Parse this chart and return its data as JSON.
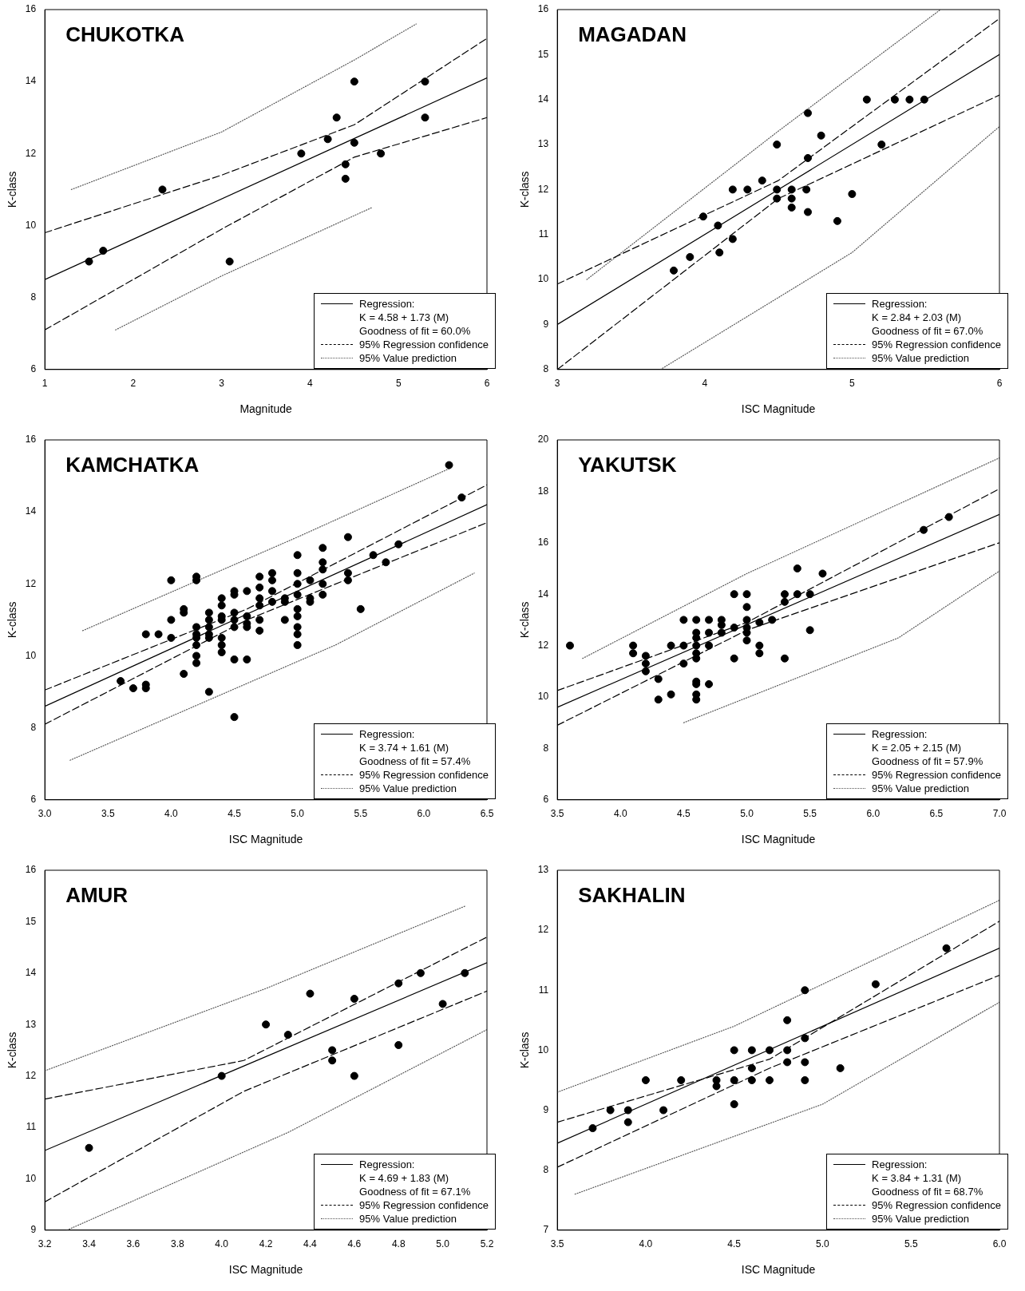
{
  "chart_data": [
    {
      "type": "scatter",
      "title": "CHUKOTKA",
      "xlabel": "Magnitude",
      "ylabel": "K-class",
      "marker": "circle",
      "legend": "bottom right",
      "xlim": [
        1,
        6
      ],
      "xticks": [
        1,
        2,
        3,
        4,
        5,
        6
      ],
      "ylim": [
        6,
        16
      ],
      "yticks": [
        6,
        8,
        10,
        12,
        14,
        16
      ],
      "annotations": [
        "K = 4.58 + 1.73 (M)",
        "Goodness of fit = 60.0%"
      ],
      "series": [
        {
          "type": "scatter",
          "color": "#000000",
          "x": [
            1.5,
            1.66,
            2.33,
            3.09,
            3.9,
            4.2,
            4.3,
            4.5,
            4.4,
            4.4,
            4.5,
            4.8,
            5.3,
            5.3
          ],
          "values": [
            9.0,
            9.3,
            11.0,
            9.0,
            12.0,
            12.4,
            13.0,
            14.0,
            11.7,
            11.3,
            12.3,
            12.0,
            14.0,
            13.0
          ]
        },
        {
          "name": "Regression:",
          "type": "line",
          "line_style": "solid",
          "marker": "none",
          "color": "#000000",
          "x": [
            1,
            6
          ],
          "values": [
            8.5,
            14.1
          ]
        },
        {
          "name": "95% Regression confidence",
          "type": "line",
          "line_style": "dashed",
          "marker": "none",
          "color": "#000000",
          "x": [
            1,
            3,
            4.5,
            6
          ],
          "values": [
            9.8,
            11.4,
            12.8,
            15.2
          ]
        },
        {
          "type": "line",
          "line_style": "dashed",
          "marker": "none",
          "color": "#000000",
          "x": [
            1,
            3,
            4.5,
            6
          ],
          "values": [
            7.1,
            9.9,
            11.9,
            13.0
          ]
        },
        {
          "name": "95% Value prediction",
          "type": "line",
          "line_style": "dotted",
          "marker": "none",
          "color": "#555555",
          "x": [
            1.3,
            3,
            4.5,
            5.2
          ],
          "values": [
            11.0,
            12.6,
            14.6,
            15.6
          ]
        },
        {
          "type": "line",
          "line_style": "dotted",
          "marker": "none",
          "color": "#555555",
          "x": [
            1.8,
            3,
            4.7
          ],
          "values": [
            7.1,
            8.6,
            10.5
          ]
        }
      ]
    },
    {
      "type": "scatter",
      "title": "MAGADAN",
      "xlabel": "ISC Magnitude",
      "ylabel": "K-class",
      "marker": "circle",
      "legend": "bottom right",
      "xlim": [
        3,
        6
      ],
      "xticks": [
        3,
        4,
        5,
        6
      ],
      "ylim": [
        8,
        16
      ],
      "yticks": [
        8,
        9,
        10,
        11,
        12,
        13,
        14,
        15,
        16
      ],
      "annotations": [
        "K = 2.84 + 2.03 (M)",
        "Goodness of fit = 67.0%"
      ],
      "series": [
        {
          "type": "scatter",
          "color": "#000000",
          "x": [
            3.79,
            3.9,
            3.99,
            4.09,
            4.1,
            4.19,
            4.19,
            4.29,
            4.39,
            4.49,
            4.49,
            4.49,
            4.59,
            4.59,
            4.59,
            4.69,
            4.7,
            4.7,
            4.7,
            4.79,
            4.9,
            5.0,
            5.1,
            5.2,
            5.29,
            5.39,
            5.49
          ],
          "values": [
            10.2,
            10.5,
            11.4,
            11.2,
            10.6,
            12.0,
            10.9,
            12.0,
            12.2,
            13.0,
            12.0,
            11.8,
            12.0,
            11.8,
            11.6,
            12.0,
            13.7,
            12.7,
            11.5,
            13.2,
            11.3,
            11.9,
            14.0,
            13.0,
            14.0,
            14.0,
            14.0
          ]
        },
        {
          "name": "Regression:",
          "type": "line",
          "line_style": "solid",
          "marker": "none",
          "color": "#000000",
          "x": [
            3,
            6
          ],
          "values": [
            9.0,
            15.0
          ]
        },
        {
          "name": "95% Regression confidence",
          "type": "line",
          "line_style": "dashed",
          "marker": "none",
          "color": "#000000",
          "x": [
            3,
            4.5,
            6
          ],
          "values": [
            9.9,
            12.2,
            15.8
          ]
        },
        {
          "type": "line",
          "line_style": "dashed",
          "marker": "none",
          "color": "#000000",
          "x": [
            3,
            4.5,
            6
          ],
          "values": [
            8.0,
            11.8,
            14.1
          ]
        },
        {
          "name": "95% Value prediction",
          "type": "line",
          "line_style": "dotted",
          "marker": "none",
          "color": "#555555",
          "x": [
            3.2,
            4.5,
            5.6
          ],
          "values": [
            10.0,
            13.3,
            16.0
          ]
        },
        {
          "type": "line",
          "line_style": "dotted",
          "marker": "none",
          "color": "#555555",
          "x": [
            3.7,
            5,
            6
          ],
          "values": [
            8.0,
            10.6,
            13.4
          ]
        }
      ]
    },
    {
      "type": "scatter",
      "title": "KAMCHATKA",
      "xlabel": "ISC Magnitude",
      "ylabel": "K-class",
      "marker": "circle",
      "legend": "bottom right",
      "xlim": [
        3,
        6.5
      ],
      "xticks": [
        {
          "value": 3,
          "label": "3.0"
        },
        {
          "value": 3.5,
          "label": "3.5"
        },
        {
          "value": 4,
          "label": "4.0"
        },
        {
          "value": 4.5,
          "label": "4.5"
        },
        {
          "value": 5,
          "label": "5.0"
        },
        {
          "value": 5.5,
          "label": "5.5"
        },
        {
          "value": 6,
          "label": "6.0"
        },
        {
          "value": 6.5,
          "label": "6.5"
        }
      ],
      "ylim": [
        6,
        16
      ],
      "yticks": [
        6,
        8,
        10,
        12,
        14,
        16
      ],
      "annotations": [
        "K = 3.74 + 1.61 (M)",
        "Goodness of fit = 57.4%"
      ],
      "series": [
        {
          "type": "scatter",
          "color": "#000000",
          "x": [
            3.6,
            3.7,
            3.8,
            3.8,
            3.8,
            3.9,
            4.0,
            4.0,
            4.0,
            4.1,
            4.1,
            4.1,
            4.2,
            4.2,
            4.2,
            4.2,
            4.2,
            4.2,
            4.2,
            4.2,
            4.3,
            4.3,
            4.3,
            4.3,
            4.3,
            4.3,
            4.4,
            4.4,
            4.4,
            4.4,
            4.4,
            4.4,
            4.4,
            4.5,
            4.5,
            4.5,
            4.5,
            4.5,
            4.5,
            4.5,
            4.6,
            4.6,
            4.6,
            4.6,
            4.6,
            4.7,
            4.7,
            4.7,
            4.7,
            4.7,
            4.7,
            4.8,
            4.8,
            4.8,
            4.8,
            4.9,
            4.9,
            4.9,
            5.0,
            5.0,
            5.0,
            5.0,
            5.0,
            5.0,
            5.0,
            5.0,
            5.0,
            5.1,
            5.1,
            5.1,
            5.2,
            5.2,
            5.2,
            5.2,
            5.2,
            5.4,
            5.4,
            5.4,
            5.5,
            5.6,
            5.7,
            5.8,
            6.2,
            6.3
          ],
          "values": [
            9.3,
            9.1,
            10.6,
            9.2,
            9.1,
            10.6,
            12.1,
            11.0,
            10.5,
            11.3,
            11.2,
            9.5,
            12.2,
            12.1,
            10.8,
            10.6,
            10.5,
            10.3,
            10.0,
            9.8,
            11.2,
            11.0,
            10.8,
            10.6,
            10.5,
            9.0,
            11.6,
            11.4,
            11.1,
            11.0,
            10.5,
            10.3,
            10.1,
            11.8,
            11.7,
            11.2,
            11.0,
            10.8,
            9.9,
            8.3,
            11.8,
            11.1,
            10.9,
            10.8,
            9.9,
            12.2,
            11.9,
            11.6,
            11.4,
            11.0,
            10.7,
            12.3,
            12.1,
            11.8,
            11.5,
            11.6,
            11.5,
            11.0,
            12.8,
            12.3,
            12.0,
            11.7,
            11.3,
            11.1,
            10.8,
            10.6,
            10.3,
            12.1,
            11.6,
            11.5,
            13.0,
            12.6,
            12.4,
            12.0,
            11.7,
            13.3,
            12.3,
            12.1,
            11.3,
            12.8,
            12.6,
            13.1,
            15.3,
            14.4
          ]
        },
        {
          "name": "Regression:",
          "type": "line",
          "line_style": "solid",
          "marker": "none",
          "color": "#000000",
          "x": [
            3,
            6.5
          ],
          "values": [
            8.6,
            14.2
          ]
        },
        {
          "name": "95% Regression confidence",
          "type": "line",
          "line_style": "dashed",
          "marker": "none",
          "color": "#000000",
          "x": [
            3,
            4.6,
            6.5
          ],
          "values": [
            9.05,
            11.3,
            14.75
          ]
        },
        {
          "type": "line",
          "line_style": "dashed",
          "marker": "none",
          "color": "#000000",
          "x": [
            3,
            4.6,
            6.5
          ],
          "values": [
            8.1,
            11.0,
            13.7
          ]
        },
        {
          "name": "95% Value prediction",
          "type": "line",
          "line_style": "dotted",
          "marker": "none",
          "color": "#555555",
          "x": [
            3.3,
            5,
            6.2
          ],
          "values": [
            10.7,
            13.3,
            15.2
          ]
        },
        {
          "type": "line",
          "line_style": "dotted",
          "marker": "none",
          "color": "#555555",
          "x": [
            3.2,
            5.3,
            6.4
          ],
          "values": [
            7.1,
            10.3,
            12.3
          ]
        }
      ]
    },
    {
      "type": "scatter",
      "title": "YAKUTSK",
      "xlabel": "ISC Magnitude",
      "ylabel": "K-class",
      "marker": "circle",
      "legend": "bottom right",
      "xlim": [
        3.5,
        7
      ],
      "xticks": [
        {
          "value": 3.5,
          "label": "3.5"
        },
        {
          "value": 4,
          "label": "4.0"
        },
        {
          "value": 4.5,
          "label": "4.5"
        },
        {
          "value": 5,
          "label": "5.0"
        },
        {
          "value": 5.5,
          "label": "5.5"
        },
        {
          "value": 6,
          "label": "6.0"
        },
        {
          "value": 6.5,
          "label": "6.5"
        },
        {
          "value": 7,
          "label": "7.0"
        }
      ],
      "ylim": [
        6,
        20
      ],
      "yticks": [
        6,
        8,
        10,
        12,
        14,
        16,
        18,
        20
      ],
      "annotations": [
        "K = 2.05 + 2.15 (M)",
        "Goodness of fit = 57.9%"
      ],
      "series": [
        {
          "type": "scatter",
          "color": "#000000",
          "x": [
            3.6,
            4.1,
            4.1,
            4.2,
            4.2,
            4.2,
            4.3,
            4.3,
            4.4,
            4.4,
            4.5,
            4.5,
            4.5,
            4.6,
            4.6,
            4.6,
            4.6,
            4.6,
            4.6,
            4.6,
            4.6,
            4.6,
            4.6,
            4.7,
            4.7,
            4.7,
            4.7,
            4.8,
            4.8,
            4.8,
            4.9,
            4.9,
            4.9,
            5.0,
            5.0,
            5.0,
            5.0,
            5.0,
            5.0,
            5.1,
            5.1,
            5.1,
            5.2,
            5.3,
            5.3,
            5.3,
            5.4,
            5.4,
            5.5,
            5.5,
            5.6,
            6.4,
            6.6
          ],
          "values": [
            12.0,
            12.0,
            11.7,
            11.6,
            11.3,
            11.0,
            10.7,
            9.9,
            12.0,
            10.1,
            13.0,
            12.0,
            11.3,
            13.0,
            12.5,
            12.3,
            12.0,
            11.7,
            11.5,
            10.6,
            10.5,
            10.1,
            9.9,
            13.0,
            12.5,
            12.0,
            10.5,
            13.0,
            12.8,
            12.5,
            14.0,
            12.7,
            11.5,
            14.0,
            13.5,
            13.0,
            12.7,
            12.5,
            12.2,
            12.9,
            12.0,
            11.7,
            13.0,
            14.0,
            13.7,
            11.5,
            15.0,
            14.0,
            14.0,
            12.6,
            14.8,
            16.5,
            17.0
          ]
        },
        {
          "name": "Regression:",
          "type": "line",
          "line_style": "solid",
          "marker": "none",
          "color": "#000000",
          "x": [
            3.5,
            7
          ],
          "values": [
            9.6,
            17.1
          ]
        },
        {
          "name": "95% Regression confidence",
          "type": "line",
          "line_style": "dashed",
          "marker": "none",
          "color": "#000000",
          "x": [
            3.5,
            5,
            7
          ],
          "values": [
            10.25,
            12.9,
            18.1
          ]
        },
        {
          "type": "line",
          "line_style": "dashed",
          "marker": "none",
          "color": "#000000",
          "x": [
            3.5,
            5,
            7
          ],
          "values": [
            8.9,
            12.6,
            16.0
          ]
        },
        {
          "name": "95% Value prediction",
          "type": "line",
          "line_style": "dotted",
          "marker": "none",
          "color": "#555555",
          "x": [
            3.7,
            5,
            7
          ],
          "values": [
            11.5,
            14.8,
            19.3
          ]
        },
        {
          "type": "line",
          "line_style": "dotted",
          "marker": "none",
          "color": "#555555",
          "x": [
            4.5,
            6.2,
            7
          ],
          "values": [
            9.0,
            12.3,
            14.9
          ]
        }
      ]
    },
    {
      "type": "scatter",
      "title": "AMUR",
      "xlabel": "ISC Magnitude",
      "ylabel": "K-class",
      "marker": "circle",
      "legend": "bottom right",
      "xlim": [
        3.2,
        5.2
      ],
      "xticks": [
        {
          "value": 3.2,
          "label": "3.2"
        },
        {
          "value": 3.4,
          "label": "3.4"
        },
        {
          "value": 3.6,
          "label": "3.6"
        },
        {
          "value": 3.8,
          "label": "3.8"
        },
        {
          "value": 4,
          "label": "4.0"
        },
        {
          "value": 4.2,
          "label": "4.2"
        },
        {
          "value": 4.4,
          "label": "4.4"
        },
        {
          "value": 4.6,
          "label": "4.6"
        },
        {
          "value": 4.8,
          "label": "4.8"
        },
        {
          "value": 5,
          "label": "5.0"
        },
        {
          "value": 5.2,
          "label": "5.2"
        }
      ],
      "ylim": [
        9,
        16
      ],
      "yticks": [
        9,
        10,
        11,
        12,
        13,
        14,
        15,
        16
      ],
      "annotations": [
        "K = 4.69 + 1.83 (M)",
        "Goodness of fit = 67.1%"
      ],
      "series": [
        {
          "type": "scatter",
          "color": "#000000",
          "x": [
            3.4,
            4.0,
            4.2,
            4.3,
            4.4,
            4.5,
            4.5,
            4.6,
            4.6,
            4.8,
            4.8,
            4.9,
            5.0,
            5.1
          ],
          "values": [
            10.6,
            12.0,
            13.0,
            12.8,
            13.6,
            12.5,
            12.3,
            13.5,
            12.0,
            13.8,
            12.6,
            14.0,
            13.4,
            14.0
          ]
        },
        {
          "name": "Regression:",
          "type": "line",
          "line_style": "solid",
          "marker": "none",
          "color": "#000000",
          "x": [
            3.2,
            5.2
          ],
          "values": [
            10.55,
            14.2
          ]
        },
        {
          "name": "95% Regression confidence",
          "type": "line",
          "line_style": "dashed",
          "marker": "none",
          "color": "#000000",
          "x": [
            3.2,
            4.1,
            5.2
          ],
          "values": [
            11.55,
            12.3,
            14.7
          ]
        },
        {
          "type": "line",
          "line_style": "dashed",
          "marker": "none",
          "color": "#000000",
          "x": [
            3.2,
            4.1,
            5.2
          ],
          "values": [
            9.55,
            11.7,
            13.65
          ]
        },
        {
          "name": "95% Value prediction",
          "type": "line",
          "line_style": "dotted",
          "marker": "none",
          "color": "#555555",
          "x": [
            3.2,
            4.2,
            5.1
          ],
          "values": [
            12.1,
            13.7,
            15.3
          ]
        },
        {
          "type": "line",
          "line_style": "dotted",
          "marker": "none",
          "color": "#555555",
          "x": [
            3.3,
            4.3,
            5.2
          ],
          "values": [
            9.0,
            10.9,
            12.9
          ]
        }
      ]
    },
    {
      "type": "scatter",
      "title": "SAKHALIN",
      "xlabel": "ISC Magnitude",
      "ylabel": "K-class",
      "marker": "circle",
      "legend": "bottom right",
      "xlim": [
        3.5,
        6
      ],
      "xticks": [
        {
          "value": 3.5,
          "label": "3.5"
        },
        {
          "value": 4,
          "label": "4.0"
        },
        {
          "value": 4.5,
          "label": "4.5"
        },
        {
          "value": 5,
          "label": "5.0"
        },
        {
          "value": 5.5,
          "label": "5.5"
        },
        {
          "value": 6,
          "label": "6.0"
        }
      ],
      "ylim": [
        7,
        13
      ],
      "yticks": [
        7,
        8,
        9,
        10,
        11,
        12,
        13
      ],
      "annotations": [
        "K = 3.84 + 1.31 (M)",
        "Goodness of fit = 68.7%"
      ],
      "series": [
        {
          "type": "scatter",
          "color": "#000000",
          "x": [
            3.7,
            3.8,
            3.9,
            3.9,
            4.0,
            4.1,
            4.2,
            4.4,
            4.4,
            4.5,
            4.5,
            4.5,
            4.6,
            4.6,
            4.6,
            4.7,
            4.7,
            4.8,
            4.8,
            4.8,
            4.9,
            4.9,
            4.9,
            4.9,
            5.1,
            5.3,
            5.7
          ],
          "values": [
            8.7,
            9.0,
            9.0,
            8.8,
            9.5,
            9.0,
            9.5,
            9.5,
            9.4,
            10.0,
            9.5,
            9.1,
            10.0,
            9.7,
            9.5,
            10.0,
            9.5,
            10.5,
            10.0,
            9.8,
            11.0,
            10.2,
            9.8,
            9.5,
            9.7,
            11.1,
            11.7
          ]
        },
        {
          "name": "Regression:",
          "type": "line",
          "line_style": "solid",
          "marker": "none",
          "color": "#000000",
          "x": [
            3.5,
            6
          ],
          "values": [
            8.45,
            11.7
          ]
        },
        {
          "name": "95% Regression confidence",
          "type": "line",
          "line_style": "dashed",
          "marker": "none",
          "color": "#000000",
          "x": [
            3.5,
            4.7,
            6
          ],
          "values": [
            8.8,
            9.85,
            12.15
          ]
        },
        {
          "type": "line",
          "line_style": "dashed",
          "marker": "none",
          "color": "#000000",
          "x": [
            3.5,
            4.7,
            6
          ],
          "values": [
            8.05,
            9.7,
            11.25
          ]
        },
        {
          "name": "95% Value prediction",
          "type": "line",
          "line_style": "dotted",
          "marker": "none",
          "color": "#555555",
          "x": [
            3.5,
            4.5,
            6
          ],
          "values": [
            9.3,
            10.4,
            12.5
          ]
        },
        {
          "type": "line",
          "line_style": "dotted",
          "marker": "none",
          "color": "#555555",
          "x": [
            3.6,
            5,
            6
          ],
          "values": [
            7.6,
            9.1,
            10.8
          ]
        }
      ]
    }
  ]
}
